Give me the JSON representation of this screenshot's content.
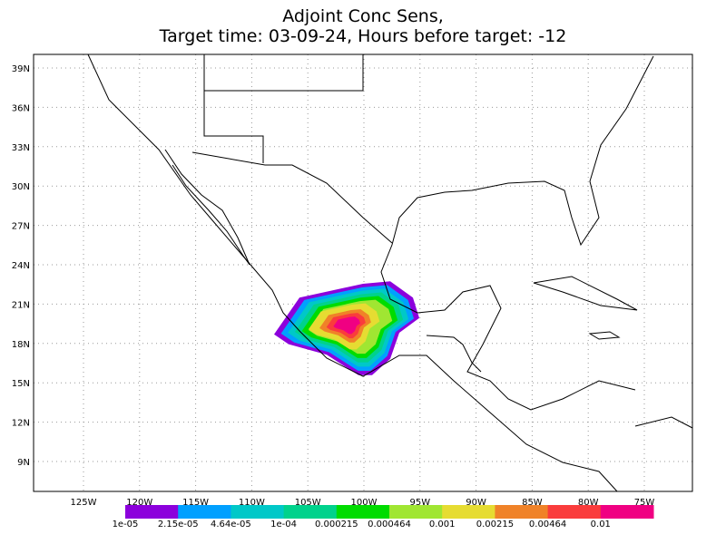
{
  "title": [
    "Adjoint Conc Sens,",
    "Target time: 03-09-24, Hours before target: -12"
  ],
  "map": {
    "lon_ticks": [
      "125W",
      "120W",
      "115W",
      "110W",
      "105W",
      "100W",
      "95W",
      "90W",
      "85W",
      "80W",
      "75W"
    ],
    "lat_ticks": [
      "39N",
      "36N",
      "33N",
      "30N",
      "27N",
      "24N",
      "21N",
      "18N",
      "15N",
      "12N",
      "9N"
    ]
  },
  "colorbar": {
    "colors": [
      "#8c00dc",
      "#00a0ff",
      "#00c8c8",
      "#00d28c",
      "#00dc00",
      "#a0e632",
      "#e6dc32",
      "#f08228",
      "#fa3c3c",
      "#f00082"
    ],
    "labels": [
      "1e-05",
      "2.15e-05",
      "4.64e-05",
      "1e-04",
      "0.000215",
      "0.000464",
      "0.001",
      "0.00215",
      "0.00464",
      "0.01"
    ]
  }
}
